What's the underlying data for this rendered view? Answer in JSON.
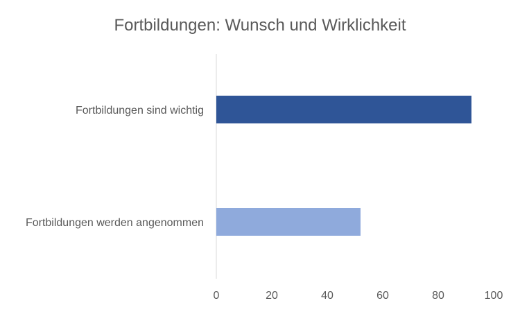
{
  "chart_data": {
    "type": "bar",
    "orientation": "horizontal",
    "title": "Fortbildungen: Wunsch und Wirklichkeit",
    "categories": [
      "Fortbildungen sind wichtig",
      "Fortbildungen werden angenommen"
    ],
    "values": [
      92,
      52
    ],
    "bar_colors": [
      "#2F5597",
      "#8FAADC"
    ],
    "xlim": [
      0,
      100
    ],
    "x_ticks": [
      0,
      20,
      40,
      60,
      80,
      100
    ],
    "xlabel": "",
    "ylabel": "",
    "grid": false,
    "legend": "none"
  }
}
